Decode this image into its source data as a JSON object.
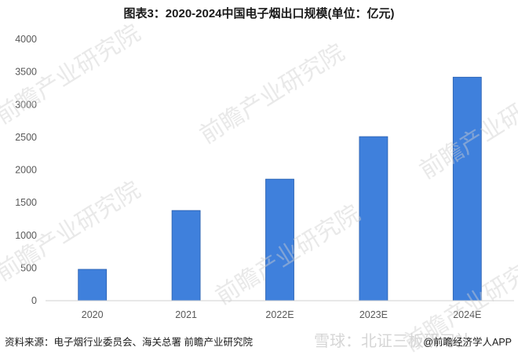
{
  "chart_data": {
    "type": "bar",
    "title": "图表3：2020-2024中国电子烟出口规模(单位：亿元)",
    "categories": [
      "2020",
      "2021",
      "2022E",
      "2023E",
      "2024E"
    ],
    "values": [
      480,
      1380,
      1860,
      2510,
      3420
    ],
    "ylim": [
      0,
      4000
    ],
    "yticks": [
      "0",
      "500",
      "1000",
      "1500",
      "2000",
      "2500",
      "3000",
      "3500",
      "4000"
    ],
    "grid": false,
    "bar_color": "#3f80dc"
  },
  "source": "资料来源：电子烟行业委员会、海关总署 前瞻产业研究院",
  "watermark": "前瞻产业研究院",
  "brand_watermark": "雪球：北证三板研习社",
  "app_tag": "@前瞻经济学人APP"
}
